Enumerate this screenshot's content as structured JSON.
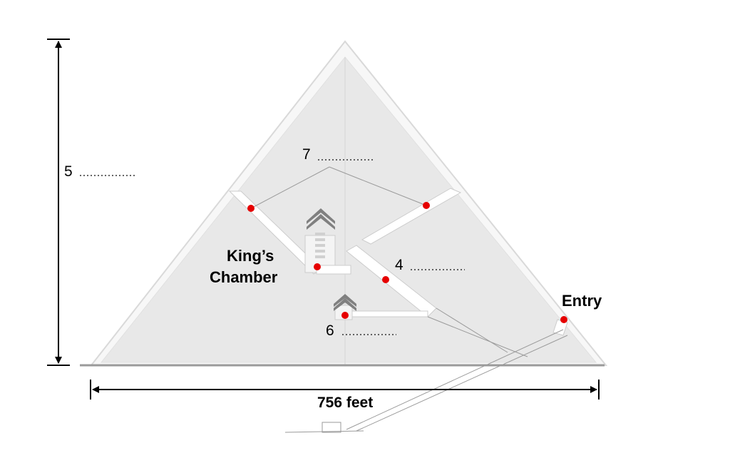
{
  "labels": {
    "height_marker": "5",
    "upper_shaft_marker": "7",
    "gallery_marker": "4",
    "queens_marker": "6",
    "kings_chamber_line1": "King’s",
    "kings_chamber_line2": "Chamber",
    "entry": "Entry",
    "base_width": "756 feet"
  },
  "colors": {
    "stone": "#e8e8e8",
    "passage": "#ffffff",
    "outline": "#cfcfcf",
    "marker": "#e60000",
    "chevron": "#808080"
  }
}
